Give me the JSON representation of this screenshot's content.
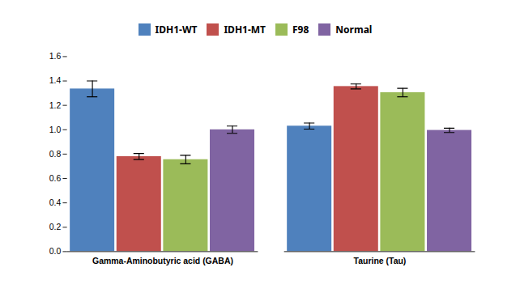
{
  "chart_data": {
    "type": "bar",
    "categories": [
      "Gamma-Aminobutyric acid (GABA)",
      "Taurine (Tau)"
    ],
    "series": [
      {
        "name": "IDH1-WT",
        "color": "#4F81BD",
        "values": [
          1.335,
          1.03
        ],
        "errors": [
          0.065,
          0.025
        ]
      },
      {
        "name": "IDH1-MT",
        "color": "#C0504D",
        "values": [
          0.78,
          1.355
        ],
        "errors": [
          0.025,
          0.02
        ]
      },
      {
        "name": "F98",
        "color": "#9BBB59",
        "values": [
          0.755,
          1.305
        ],
        "errors": [
          0.035,
          0.035
        ]
      },
      {
        "name": "Normal",
        "color": "#8064A2",
        "values": [
          1.0,
          0.995
        ],
        "errors": [
          0.03,
          0.018
        ]
      }
    ],
    "ylim": [
      0,
      1.6
    ],
    "yticks": [
      {
        "value": 0,
        "label": "0.0"
      },
      0.2,
      0.4,
      0.6,
      0.8,
      {
        "value": 1,
        "label": "1.0"
      },
      1.2,
      1.4,
      1.6
    ],
    "grid": false,
    "legend": "top"
  }
}
